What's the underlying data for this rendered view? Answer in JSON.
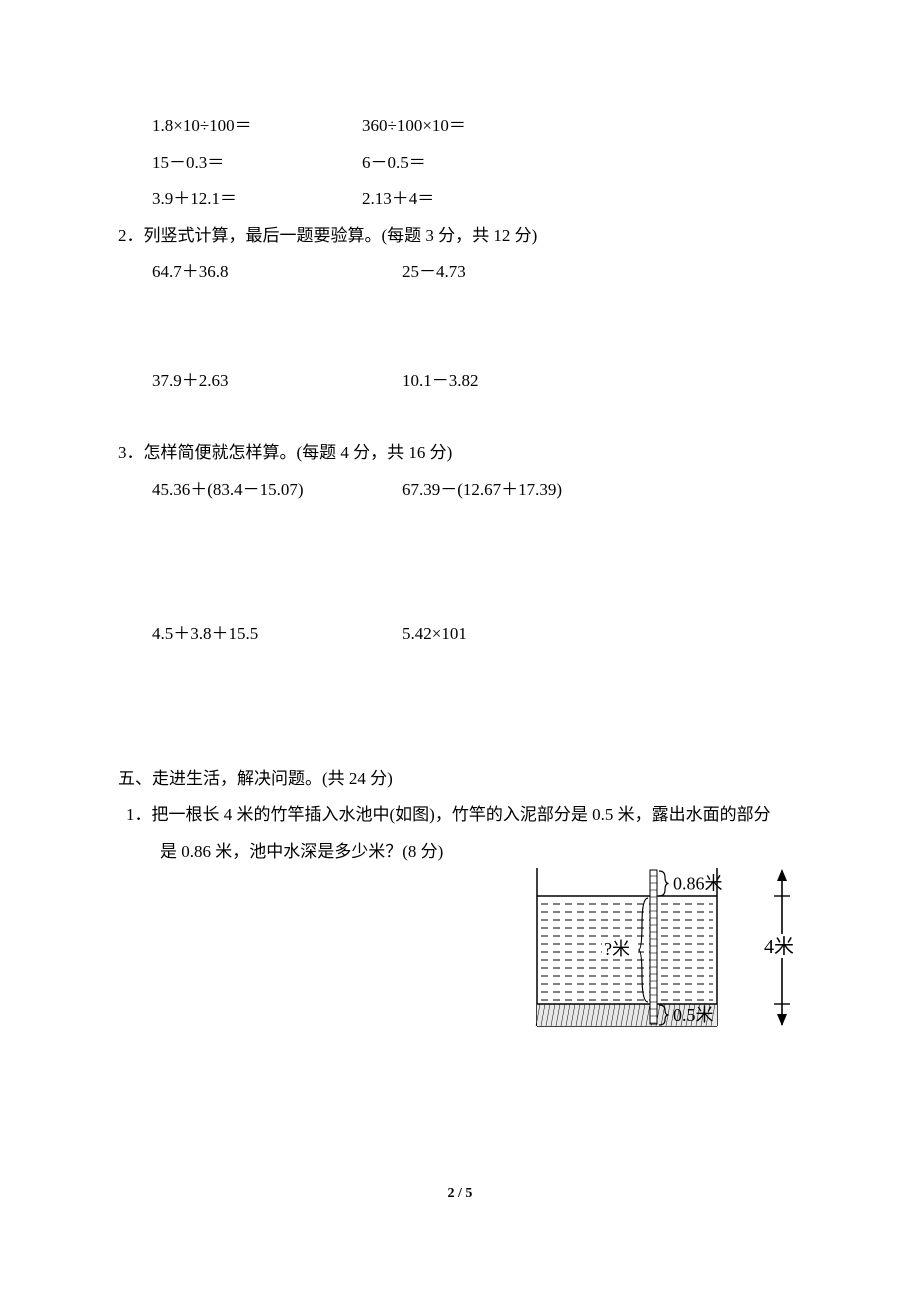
{
  "mental_calc": {
    "r1a": "1.8×10÷100＝",
    "r1b": "360÷100×10＝",
    "r2a": "15－0.3＝",
    "r2b": "6－0.5＝",
    "r3a": "3.9＋12.1＝",
    "r3b": "2.13＋4＝"
  },
  "q2": {
    "title": "2．列竖式计算，最后一题要验算。(每题 3 分，共 12 分)",
    "r1a": "64.7＋36.8",
    "r1b": "25－4.73",
    "r2a": "37.9＋2.63",
    "r2b": "10.1－3.82"
  },
  "q3": {
    "title": "3．怎样简便就怎样算。(每题 4 分，共 16 分)",
    "r1a": "45.36＋(83.4－15.07)",
    "r1b": "67.39－(12.67＋17.39)",
    "r2a": "4.5＋3.8＋15.5",
    "r2b": "5.42×101"
  },
  "section5": {
    "title": "五、走进生活，解决问题。(共 24 分)",
    "q1_line1": "1．把一根长 4 米的竹竿插入水池中(如图)，竹竿的入泥部分是 0.5 米，露出水面的部分",
    "q1_line2": "是 0.86 米，池中水深是多少米？(8 分)"
  },
  "figure": {
    "top_label": "0.86米",
    "mid_label": "?米",
    "bottom_label": "0.5米",
    "right_label": "4米",
    "colors": {
      "stroke": "#000000",
      "bg": "#ffffff",
      "dash": "#000000",
      "mud_fill": "#e8e8e8"
    },
    "font_size": 18,
    "line_width": 1.5
  },
  "page_number": "2 / 5"
}
